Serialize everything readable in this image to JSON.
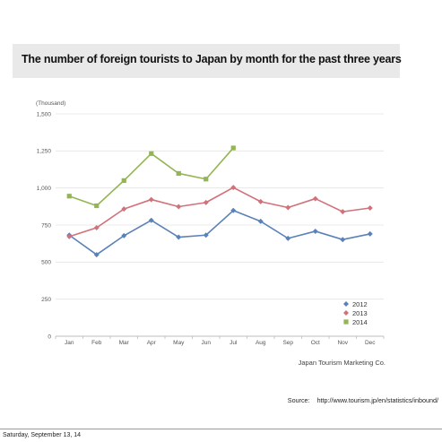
{
  "title": "The number of foreign tourists to Japan by month for the past three years",
  "credit": "Japan Tourism Marketing Co.",
  "source": {
    "label": "Source:",
    "url": "http://www.tourism.jp/en/statistics/inbound/"
  },
  "footer_date": "Saturday, September 13, 14",
  "chart_data": {
    "type": "line",
    "title": "The number of foreign tourists to Japan by month for the past three years",
    "unit_label": "(Thousand)",
    "categories": [
      "Jan",
      "Feb",
      "Mar",
      "Apr",
      "May",
      "Jun",
      "Jul",
      "Aug",
      "Sep",
      "Oct",
      "Nov",
      "Dec"
    ],
    "ylim": [
      0,
      1500
    ],
    "yticks": [
      0,
      250,
      500,
      750,
      1000,
      1250,
      1500
    ],
    "ytick_labels": [
      "0",
      "250",
      "500",
      "750",
      "1,000",
      "1,250",
      "1,500"
    ],
    "grid": true,
    "legend_position": "bottom-right",
    "series": [
      {
        "name": "2012",
        "color": "#5b82b8",
        "marker": "diamond",
        "values": [
          682,
          550,
          678,
          782,
          668,
          682,
          848,
          775,
          660,
          708,
          652,
          690
        ]
      },
      {
        "name": "2013",
        "color": "#d0727a",
        "marker": "diamond",
        "values": [
          672,
          732,
          858,
          922,
          874,
          902,
          1003,
          908,
          868,
          928,
          840,
          865
        ]
      },
      {
        "name": "2014",
        "color": "#93b553",
        "marker": "square",
        "values": [
          945,
          880,
          1050,
          1232,
          1098,
          1060,
          1270,
          null,
          null,
          null,
          null,
          null
        ]
      }
    ]
  }
}
